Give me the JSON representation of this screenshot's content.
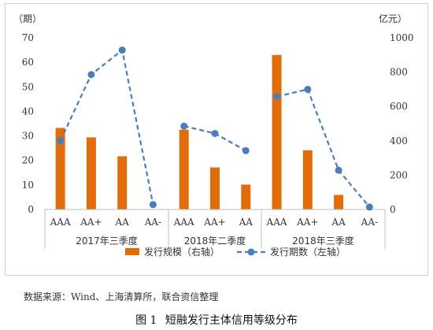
{
  "chart_data": {
    "type": "bar",
    "categories": [
      "AAA",
      "AA+",
      "AA",
      "AA-",
      "AAA",
      "AA+",
      "AA",
      "AAA",
      "AA+",
      "AA",
      "AA-"
    ],
    "groups": [
      {
        "label": "2017年三季度",
        "indices": [
          0,
          1,
          2,
          3
        ]
      },
      {
        "label": "2018年二季度",
        "indices": [
          4,
          5,
          6
        ]
      },
      {
        "label": "2018年三季度",
        "indices": [
          7,
          8,
          9,
          10
        ]
      }
    ],
    "series": [
      {
        "name": "发行规模（右轴）",
        "type": "bar",
        "axis": "right",
        "values": [
          475,
          420,
          310,
          0,
          465,
          245,
          145,
          900,
          345,
          85,
          0
        ]
      },
      {
        "name": "发行期数（左轴）",
        "type": "line",
        "axis": "left",
        "style": "dashed-with-markers",
        "values": [
          28,
          55,
          65,
          2,
          34,
          31,
          24,
          46,
          49,
          16,
          1
        ]
      }
    ],
    "left_axis": {
      "label": "（期）",
      "ylim": [
        0,
        70
      ],
      "ticks": [
        "0",
        "10",
        "20",
        "30",
        "40",
        "50",
        "60",
        "70"
      ]
    },
    "right_axis": {
      "label": "亿元）",
      "ylim": [
        0,
        1000
      ],
      "ticks": [
        "0",
        "200",
        "400",
        "600",
        "800",
        "1000"
      ]
    },
    "legend_position": "bottom",
    "grid": false,
    "colors": {
      "bar": "#e36c0a",
      "line": "#4a7ebb",
      "marker": "#4a7ebb",
      "axis": "#bfbfbf",
      "text": "#333333"
    }
  },
  "source_note": "数据来源：Wind、上海清算所，联合资信整理",
  "caption": {
    "figure_no": "图 1",
    "title": "短融发行主体信用等级分布"
  }
}
